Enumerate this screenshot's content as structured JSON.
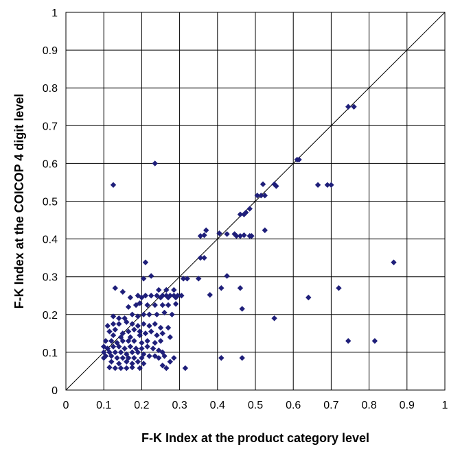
{
  "chart_data": {
    "type": "scatter",
    "xlabel": "F-K Index at the product category level",
    "ylabel": "F-K Index at the COICOP 4 digit level",
    "xlim": [
      0,
      1
    ],
    "ylim": [
      0,
      1
    ],
    "x_ticks": [
      "0",
      "0.1",
      "0.2",
      "0.3",
      "0.4",
      "0.5",
      "0.6",
      "0.7",
      "0.8",
      "0.9",
      "1"
    ],
    "y_ticks": [
      "0",
      "0.1",
      "0.2",
      "0.3",
      "0.4",
      "0.5",
      "0.6",
      "0.7",
      "0.8",
      "0.9",
      "1"
    ],
    "grid": true,
    "reference_line": {
      "from": [
        0,
        0
      ],
      "to": [
        1,
        1
      ]
    },
    "marker_color": "#1f1f7a",
    "series": [
      {
        "points": [
          [
            0.745,
            0.75
          ],
          [
            0.76,
            0.75
          ],
          [
            0.61,
            0.61
          ],
          [
            0.615,
            0.61
          ],
          [
            0.235,
            0.6
          ],
          [
            0.125,
            0.543
          ],
          [
            0.52,
            0.545
          ],
          [
            0.55,
            0.545
          ],
          [
            0.555,
            0.54
          ],
          [
            0.665,
            0.543
          ],
          [
            0.69,
            0.543
          ],
          [
            0.7,
            0.543
          ],
          [
            0.505,
            0.515
          ],
          [
            0.515,
            0.515
          ],
          [
            0.525,
            0.515
          ],
          [
            0.485,
            0.48
          ],
          [
            0.475,
            0.47
          ],
          [
            0.46,
            0.465
          ],
          [
            0.47,
            0.465
          ],
          [
            0.37,
            0.423
          ],
          [
            0.525,
            0.423
          ],
          [
            0.365,
            0.41
          ],
          [
            0.355,
            0.408
          ],
          [
            0.405,
            0.415
          ],
          [
            0.425,
            0.413
          ],
          [
            0.445,
            0.413
          ],
          [
            0.45,
            0.408
          ],
          [
            0.46,
            0.408
          ],
          [
            0.47,
            0.41
          ],
          [
            0.485,
            0.408
          ],
          [
            0.49,
            0.408
          ],
          [
            0.865,
            0.338
          ],
          [
            0.21,
            0.338
          ],
          [
            0.355,
            0.35
          ],
          [
            0.365,
            0.35
          ],
          [
            0.31,
            0.295
          ],
          [
            0.32,
            0.295
          ],
          [
            0.35,
            0.295
          ],
          [
            0.425,
            0.302
          ],
          [
            0.205,
            0.295
          ],
          [
            0.225,
            0.302
          ],
          [
            0.13,
            0.27
          ],
          [
            0.38,
            0.252
          ],
          [
            0.41,
            0.27
          ],
          [
            0.46,
            0.27
          ],
          [
            0.72,
            0.27
          ],
          [
            0.19,
            0.25
          ],
          [
            0.21,
            0.25
          ],
          [
            0.225,
            0.25
          ],
          [
            0.24,
            0.25
          ],
          [
            0.255,
            0.25
          ],
          [
            0.265,
            0.25
          ],
          [
            0.275,
            0.25
          ],
          [
            0.285,
            0.25
          ],
          [
            0.295,
            0.25
          ],
          [
            0.305,
            0.25
          ],
          [
            0.2,
            0.245
          ],
          [
            0.25,
            0.245
          ],
          [
            0.27,
            0.245
          ],
          [
            0.29,
            0.245
          ],
          [
            0.64,
            0.245
          ],
          [
            0.15,
            0.26
          ],
          [
            0.17,
            0.245
          ],
          [
            0.245,
            0.265
          ],
          [
            0.265,
            0.265
          ],
          [
            0.285,
            0.265
          ],
          [
            0.185,
            0.225
          ],
          [
            0.195,
            0.23
          ],
          [
            0.215,
            0.225
          ],
          [
            0.235,
            0.225
          ],
          [
            0.255,
            0.225
          ],
          [
            0.27,
            0.225
          ],
          [
            0.29,
            0.228
          ],
          [
            0.165,
            0.22
          ],
          [
            0.465,
            0.215
          ],
          [
            0.125,
            0.195
          ],
          [
            0.14,
            0.19
          ],
          [
            0.155,
            0.19
          ],
          [
            0.175,
            0.2
          ],
          [
            0.19,
            0.195
          ],
          [
            0.205,
            0.2
          ],
          [
            0.22,
            0.2
          ],
          [
            0.24,
            0.2
          ],
          [
            0.26,
            0.205
          ],
          [
            0.28,
            0.2
          ],
          [
            0.55,
            0.19
          ],
          [
            0.11,
            0.17
          ],
          [
            0.125,
            0.175
          ],
          [
            0.14,
            0.175
          ],
          [
            0.16,
            0.18
          ],
          [
            0.175,
            0.175
          ],
          [
            0.19,
            0.17
          ],
          [
            0.205,
            0.175
          ],
          [
            0.22,
            0.17
          ],
          [
            0.235,
            0.175
          ],
          [
            0.25,
            0.165
          ],
          [
            0.27,
            0.165
          ],
          [
            0.115,
            0.155
          ],
          [
            0.13,
            0.16
          ],
          [
            0.15,
            0.15
          ],
          [
            0.165,
            0.155
          ],
          [
            0.18,
            0.16
          ],
          [
            0.195,
            0.155
          ],
          [
            0.21,
            0.15
          ],
          [
            0.225,
            0.155
          ],
          [
            0.24,
            0.145
          ],
          [
            0.255,
            0.15
          ],
          [
            0.275,
            0.14
          ],
          [
            0.195,
            0.145
          ],
          [
            0.17,
            0.14
          ],
          [
            0.145,
            0.14
          ],
          [
            0.125,
            0.145
          ],
          [
            0.105,
            0.13
          ],
          [
            0.12,
            0.13
          ],
          [
            0.135,
            0.125
          ],
          [
            0.15,
            0.13
          ],
          [
            0.165,
            0.13
          ],
          [
            0.18,
            0.13
          ],
          [
            0.2,
            0.125
          ],
          [
            0.215,
            0.13
          ],
          [
            0.235,
            0.125
          ],
          [
            0.25,
            0.13
          ],
          [
            0.745,
            0.13
          ],
          [
            0.815,
            0.13
          ],
          [
            0.1,
            0.115
          ],
          [
            0.11,
            0.11
          ],
          [
            0.125,
            0.115
          ],
          [
            0.14,
            0.115
          ],
          [
            0.155,
            0.11
          ],
          [
            0.17,
            0.115
          ],
          [
            0.185,
            0.11
          ],
          [
            0.2,
            0.11
          ],
          [
            0.215,
            0.115
          ],
          [
            0.23,
            0.11
          ],
          [
            0.245,
            0.105
          ],
          [
            0.1,
            0.1
          ],
          [
            0.115,
            0.1
          ],
          [
            0.13,
            0.1
          ],
          [
            0.145,
            0.1
          ],
          [
            0.16,
            0.095
          ],
          [
            0.175,
            0.1
          ],
          [
            0.19,
            0.1
          ],
          [
            0.205,
            0.095
          ],
          [
            0.22,
            0.09
          ],
          [
            0.235,
            0.09
          ],
          [
            0.26,
            0.09
          ],
          [
            0.255,
            0.1
          ],
          [
            0.12,
            0.09
          ],
          [
            0.1,
            0.085
          ],
          [
            0.105,
            0.09
          ],
          [
            0.135,
            0.085
          ],
          [
            0.15,
            0.085
          ],
          [
            0.165,
            0.085
          ],
          [
            0.18,
            0.085
          ],
          [
            0.2,
            0.085
          ],
          [
            0.245,
            0.085
          ],
          [
            0.285,
            0.085
          ],
          [
            0.41,
            0.085
          ],
          [
            0.465,
            0.085
          ],
          [
            0.12,
            0.075
          ],
          [
            0.14,
            0.07
          ],
          [
            0.16,
            0.075
          ],
          [
            0.175,
            0.07
          ],
          [
            0.19,
            0.075
          ],
          [
            0.205,
            0.07
          ],
          [
            0.275,
            0.075
          ],
          [
            0.255,
            0.065
          ],
          [
            0.115,
            0.06
          ],
          [
            0.13,
            0.058
          ],
          [
            0.145,
            0.058
          ],
          [
            0.16,
            0.058
          ],
          [
            0.175,
            0.06
          ],
          [
            0.195,
            0.058
          ],
          [
            0.265,
            0.058
          ],
          [
            0.315,
            0.058
          ]
        ]
      }
    ]
  }
}
